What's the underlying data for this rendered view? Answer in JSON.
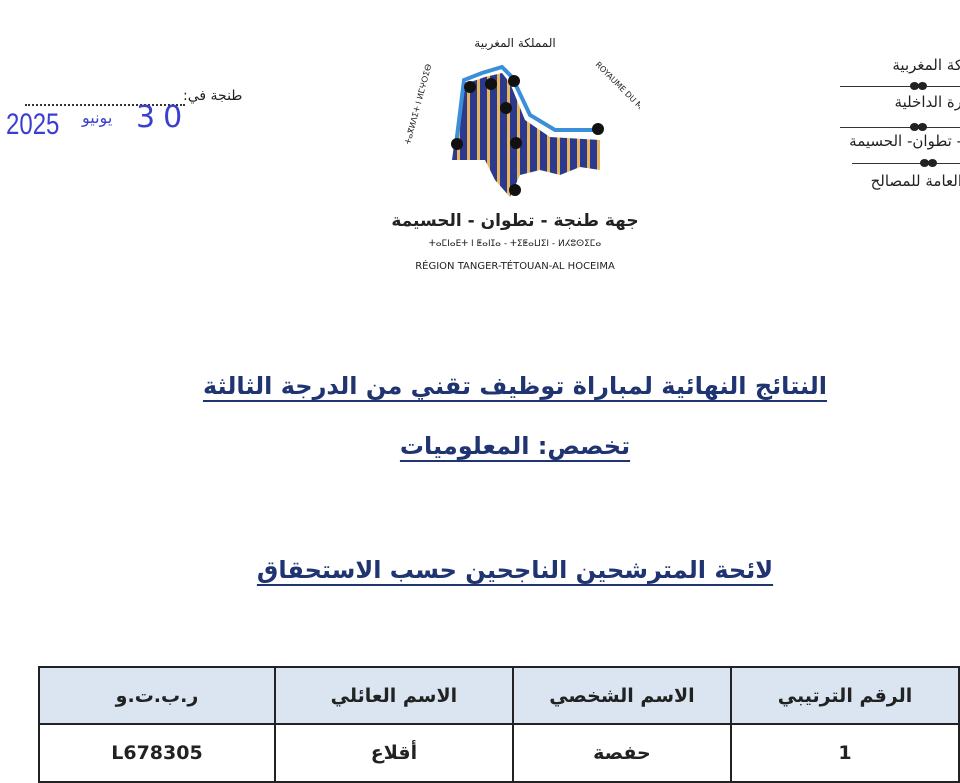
{
  "letterhead_right": [
    "كة المغربية",
    "رة الداخلية",
    "- تطوان- الحسيمة",
    "العامة للمصالح"
  ],
  "place_date": {
    "label": "طنجة في:",
    "day": "30",
    "month": "يونيو",
    "year": "2025"
  },
  "logo": {
    "arabic_arc": "المملكة المغربية",
    "french_arc": "ROYAUME DU MAROC",
    "tifinagh_arc": "ⵜⴰⴳⵍⴷⵉⵜ ⵏ ⵍⵎⵖⵔⵉⴱ",
    "region_ar": "جهة طنجة - تطوان - الحسيمة",
    "region_tifinagh": "ⵜⴰⵎⵏⴰⴹⵜ ⵏ ⵟⴰⵏⵊⴰ - ⵜⵉⵟⴰⵡⵉⵏ - ⵍⵃⵓⵙⵉⵎⴰ",
    "region_fr": "RÉGION TANGER-TÉTOUAN-AL HOCEIMA",
    "colors": {
      "blue": "#2b3a8f",
      "gold": "#e9b75a",
      "sky": "#3b8fd9"
    }
  },
  "titles": {
    "main": "النتائج النهائية لمباراة توظيف تقني من الدرجة الثالثة",
    "specialty": "تخصص: المعلوميات",
    "list": "لائحة المترشحين الناجحين حسب الاستحقاق"
  },
  "table": {
    "headers": [
      "الرقم الترتيبي",
      "الاسم الشخصي",
      "الاسم العائلي",
      "ر.ب.ت.و"
    ],
    "rows": [
      [
        "1",
        "حفصة",
        "أقلاع",
        "L678305"
      ]
    ]
  }
}
